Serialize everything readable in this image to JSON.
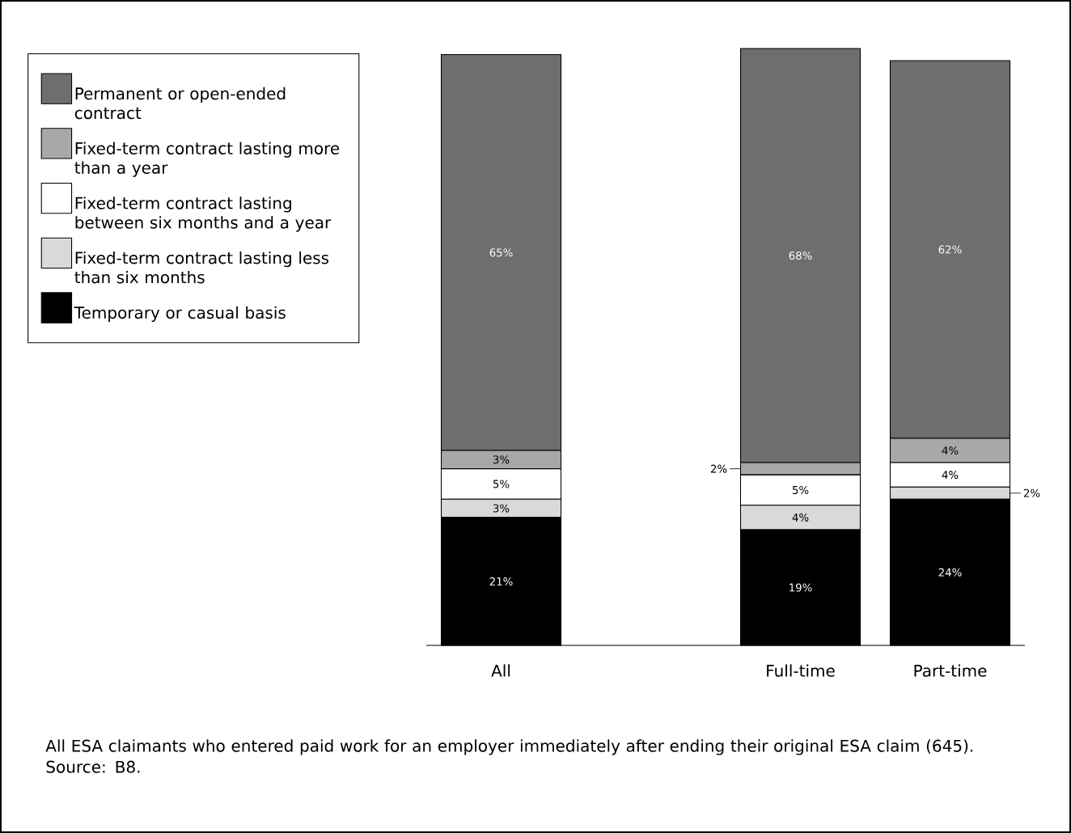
{
  "chart_data": {
    "type": "bar",
    "stacked": true,
    "legend": "top left",
    "categories": [
      "All",
      null,
      "Full-time",
      "Part-time"
    ],
    "series": [
      {
        "name": "Temporary or casual basis",
        "color": "#000000",
        "values": [
          21,
          null,
          19,
          24
        ],
        "value_labels": [
          "21%",
          null,
          "19%",
          "24%"
        ]
      },
      {
        "name": "Fixed-term contract lasting less than six months",
        "color": "#d9d9da",
        "values": [
          3,
          null,
          4,
          2
        ],
        "value_labels": [
          "3%",
          null,
          "4%",
          "2%"
        ]
      },
      {
        "name": "Fixed-term contract lasting between six months and a year",
        "color": "#ffffff",
        "values": [
          5,
          null,
          5,
          4
        ],
        "value_labels": [
          "5%",
          null,
          "5%",
          "4%"
        ]
      },
      {
        "name": "Fixed-term contract lasting more than a year",
        "color": "#a7a8aa",
        "values": [
          3,
          null,
          2,
          4
        ],
        "value_labels": [
          "3%",
          null,
          "2%",
          "4%"
        ]
      },
      {
        "name": "Permanent or open-ended contract",
        "color": "#6d6e70",
        "values": [
          65,
          null,
          68,
          62
        ],
        "value_labels": [
          "65%",
          null,
          "68%",
          "62%"
        ]
      }
    ],
    "annotations": [
      "All ESA claimants who entered paid work for an employer immediately after ending their original ESA claim (645).",
      "Source: B8."
    ]
  }
}
